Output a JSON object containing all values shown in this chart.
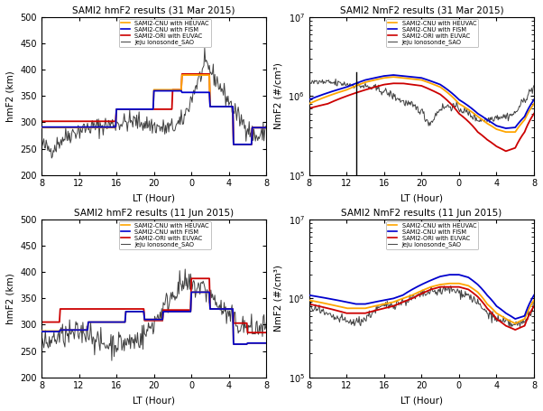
{
  "titles": [
    "SAMI2 hmF2 results (31 Mar 2015)",
    "SAMI2 NmF2 results (31 Mar 2015)",
    "SAMI2 hmF2 results (11 Jun 2015)",
    "SAMI2 NmF2 results (11 Jun 2015)"
  ],
  "xlabel": "LT (Hour)",
  "ylabel_hmf2": "hmF2 (km)",
  "ylabel_nmf2": "NmF2 (#/cm³)",
  "ylim_hmf2": [
    200,
    500
  ],
  "ylim_nmf2": [
    100000.0,
    10000000.0
  ],
  "xtick_labels": [
    "8",
    "12",
    "16",
    "20",
    "0",
    "4",
    "8"
  ],
  "colors": {
    "heuvac": "#FFA500",
    "fism": "#0000CD",
    "euvac": "#CC0000",
    "obs": "#404040"
  },
  "legend_labels": [
    "SAMI2-CNU with HEUVAC",
    "SAMI2-CNU with FISM",
    "SAMI2-ORI with EUVAC",
    "Jeju Ionosonde_SAO"
  ]
}
